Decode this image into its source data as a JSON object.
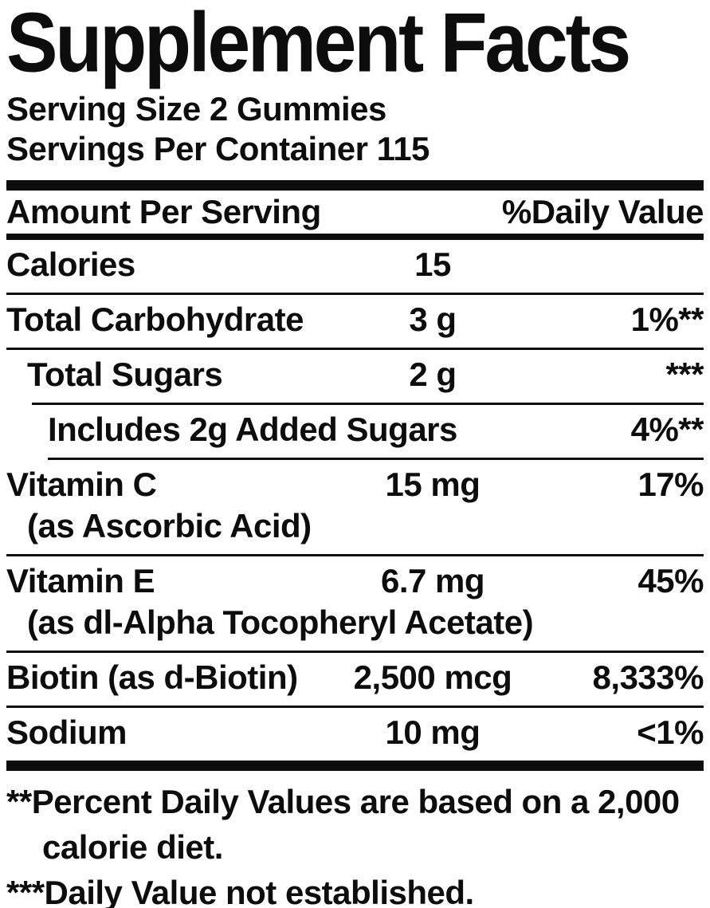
{
  "label": {
    "title": "Supplement Facts",
    "serving_size": "Serving Size 2 Gummies",
    "servings_per_container": "Servings Per Container 115",
    "header": {
      "amount_label": "Amount Per Serving",
      "daily_value_label": "%Daily Value"
    },
    "rows": [
      {
        "name": "Calories",
        "amount": "15",
        "dv": ""
      },
      {
        "name": "Total Carbohydrate",
        "amount": "3 g",
        "dv": "1%**"
      },
      {
        "name": "Total Sugars",
        "amount": "2 g",
        "dv": "***"
      },
      {
        "name": "Includes 2g Added Sugars",
        "amount": "",
        "dv": "4%**"
      },
      {
        "name": "Vitamin C",
        "source": "(as Ascorbic Acid)",
        "amount": "15 mg",
        "dv": "17%"
      },
      {
        "name": "Vitamin E",
        "source": "(as dl-Alpha Tocopheryl Acetate)",
        "amount": "6.7 mg",
        "dv": "45%"
      },
      {
        "name": "Biotin (as d-Biotin)",
        "amount": "2,500 mcg",
        "dv": "8,333%"
      },
      {
        "name": "Sodium",
        "amount": "10 mg",
        "dv": "<1%"
      }
    ],
    "footnotes": [
      "**Percent Daily Values are based on a 2,000 calorie diet.",
      "***Daily Value not established."
    ],
    "colors": {
      "ink": "#0d0d0d",
      "background": "#ffffff"
    }
  }
}
